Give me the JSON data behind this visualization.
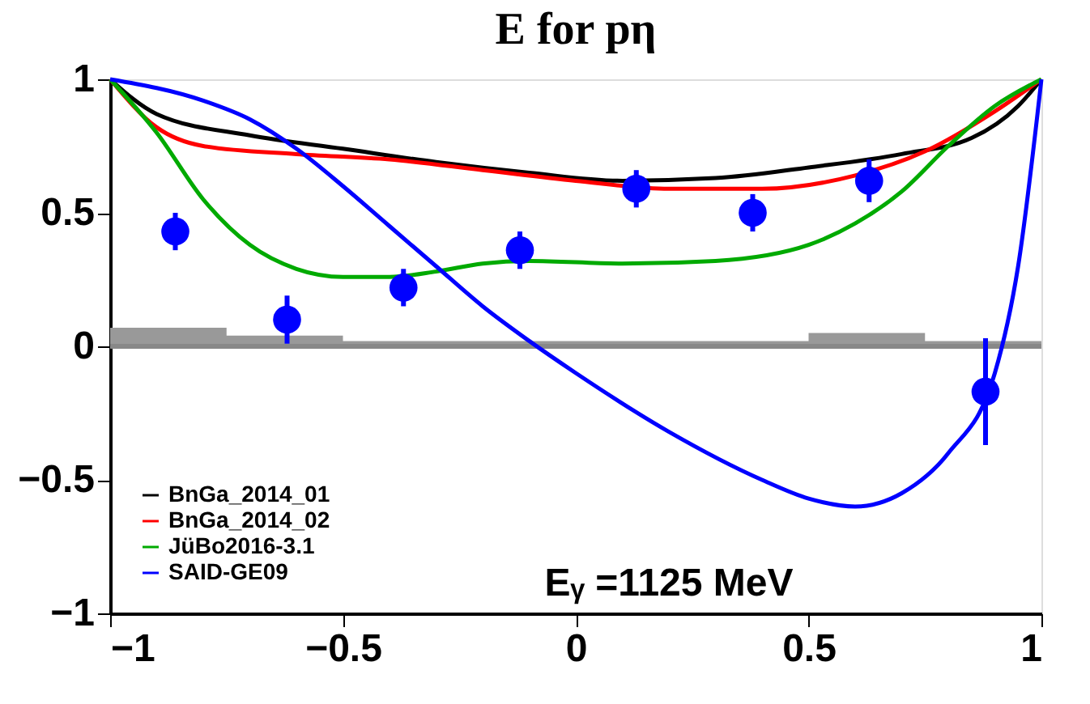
{
  "chart_data": {
    "type": "line",
    "title": "E for pη",
    "xlim": [
      -1,
      1
    ],
    "xticks": [
      -1,
      -0.5,
      0,
      0.5,
      1
    ],
    "ylim": [
      -1,
      1
    ],
    "yticks": [
      -1,
      -0.5,
      0,
      0.5,
      1
    ],
    "grid": false,
    "legend": "bottom left",
    "line_style": "solid",
    "annotations": [
      "Eᵧ =1125 MeV"
    ],
    "ref_lines": [
      {
        "axis": "y",
        "value": 0,
        "label": null,
        "color": "#888888"
      }
    ],
    "series": [
      {
        "type": "area",
        "color": "#999999",
        "x": [
          -1,
          -0.75,
          -0.5,
          -0.25,
          0,
          0.25,
          0.5,
          0.75,
          1
        ],
        "values": [
          0.07,
          0.04,
          0.02,
          0.02,
          0.02,
          0.02,
          0.05,
          0.02,
          0.02
        ]
      },
      {
        "name": "BnGa_2014_01",
        "color": "#000000",
        "x": [
          -1,
          -0.9,
          -0.7,
          -0.5,
          -0.3,
          -0.1,
          0.1,
          0.3,
          0.5,
          0.7,
          0.85,
          0.95,
          1
        ],
        "values": [
          1,
          0.87,
          0.79,
          0.74,
          0.69,
          0.65,
          0.62,
          0.63,
          0.67,
          0.72,
          0.78,
          0.9,
          1
        ]
      },
      {
        "name": "BnGa_2014_02",
        "color": "#ff0000",
        "x": [
          -1,
          -0.9,
          -0.8,
          -0.6,
          -0.4,
          -0.2,
          0,
          0.2,
          0.4,
          0.6,
          0.75,
          0.9,
          1
        ],
        "values": [
          1,
          0.82,
          0.75,
          0.72,
          0.7,
          0.66,
          0.62,
          0.59,
          0.59,
          0.64,
          0.73,
          0.88,
          1
        ]
      },
      {
        "name": "JüBo2016-3.1",
        "color": "#00aa00",
        "x": [
          -1,
          -0.9,
          -0.8,
          -0.7,
          -0.6,
          -0.5,
          -0.4,
          -0.3,
          -0.2,
          -0.1,
          0.1,
          0.3,
          0.5,
          0.6,
          0.7,
          0.8,
          0.9,
          1
        ],
        "values": [
          1,
          0.8,
          0.55,
          0.38,
          0.29,
          0.26,
          0.26,
          0.28,
          0.31,
          0.32,
          0.31,
          0.32,
          0.38,
          0.46,
          0.58,
          0.75,
          0.9,
          1
        ]
      },
      {
        "name": "SAID-GE09",
        "color": "#0000ff",
        "x": [
          -1,
          -0.8,
          -0.7,
          -0.6,
          -0.5,
          -0.4,
          -0.3,
          -0.2,
          -0.1,
          0,
          0.2,
          0.4,
          0.5,
          0.6,
          0.7,
          0.8,
          0.9,
          0.95,
          1
        ],
        "values": [
          1,
          0.92,
          0.85,
          0.74,
          0.6,
          0.45,
          0.3,
          0.15,
          0.02,
          -0.1,
          -0.32,
          -0.5,
          -0.57,
          -0.6,
          -0.55,
          -0.4,
          -0.1,
          0.3,
          1
        ]
      },
      {
        "type": "scatter",
        "color": "#0000ff",
        "marker": "circle",
        "x": [
          -0.86,
          -0.62,
          -0.37,
          -0.12,
          0.13,
          0.38,
          0.63,
          0.88
        ],
        "values": [
          0.43,
          0.1,
          0.22,
          0.36,
          0.59,
          0.5,
          0.62,
          -0.17
        ],
        "errors": [
          0.07,
          0.09,
          0.07,
          0.07,
          0.07,
          0.07,
          0.08,
          0.2
        ]
      }
    ]
  }
}
